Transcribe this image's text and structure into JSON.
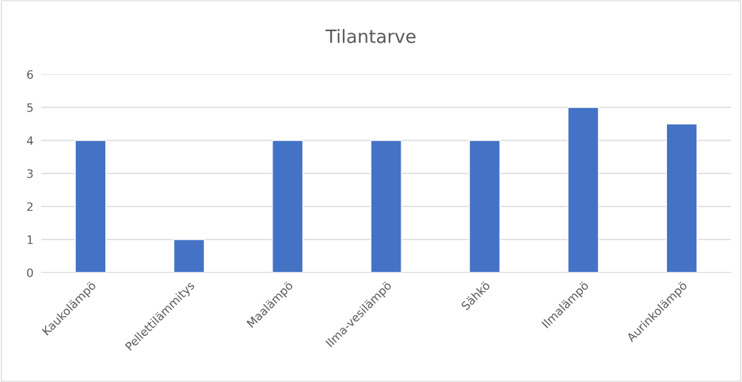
{
  "chart_data": {
    "type": "bar",
    "title": "Tilantarve",
    "categories": [
      "Kaukolämpö",
      "Pellettilämmitys",
      "Maalämpö",
      "Ilma-vesilämpö",
      "Sähkö",
      "Ilmalämpö",
      "Aurinkolämpö"
    ],
    "values": [
      4,
      1,
      4,
      4,
      4,
      5,
      4.5
    ],
    "color": "#4472c4",
    "ylim": [
      0,
      6
    ],
    "yticks": [
      0,
      1,
      2,
      3,
      4,
      5,
      6
    ],
    "grid": "y",
    "legend": false
  }
}
